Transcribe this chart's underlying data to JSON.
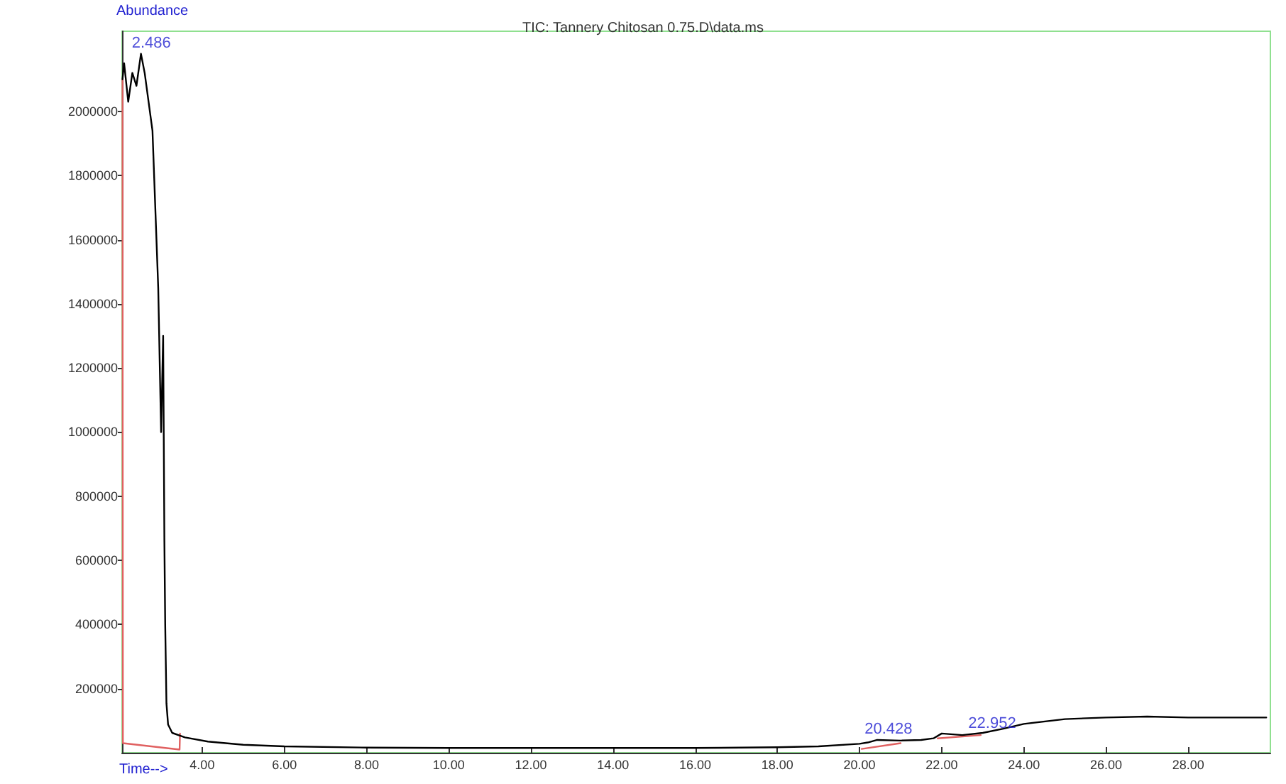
{
  "chart_data": {
    "type": "line",
    "title": "TIC: Tannery Chitosan 0.75.D\\data.ms",
    "xlabel": "Time-->",
    "ylabel": "Abundance",
    "xlim": [
      2.05,
      30
    ],
    "xticks": [
      {
        "value": 4,
        "label": "4.00"
      },
      {
        "value": 6,
        "label": "6.00"
      },
      {
        "value": 8,
        "label": "8.00"
      },
      {
        "value": 10,
        "label": "10.00"
      },
      {
        "value": 12,
        "label": "12.00"
      },
      {
        "value": 14,
        "label": "14.00"
      },
      {
        "value": 16,
        "label": "16.00"
      },
      {
        "value": 18,
        "label": "18.00"
      },
      {
        "value": 20,
        "label": "20.00"
      },
      {
        "value": 22,
        "label": "22.00"
      },
      {
        "value": 24,
        "label": "24.00"
      },
      {
        "value": 26,
        "label": "26.00"
      },
      {
        "value": 28,
        "label": "28.00"
      }
    ],
    "ylim": [
      0,
      2250000
    ],
    "yticks": [
      200000,
      400000,
      600000,
      800000,
      1000000,
      1200000,
      1400000,
      1600000,
      1800000,
      2000000
    ],
    "grid": false,
    "marker": "none",
    "line_style": "solid",
    "annotations": [
      {
        "text": "2.486",
        "x": 2.486,
        "y": 2180000
      },
      {
        "text": "20.428",
        "x": 20.428,
        "y": 40000
      },
      {
        "text": "22.952",
        "x": 22.952,
        "y": 57000
      }
    ],
    "series": [
      {
        "color": "#000000",
        "x": [
          2.06,
          2.1,
          2.2,
          2.3,
          2.4,
          2.51,
          2.6,
          2.79,
          2.93,
          3.0,
          3.05,
          3.08,
          3.1,
          3.13,
          3.17,
          3.27,
          3.58,
          4.14,
          5.0,
          6.0,
          8.0,
          10.0,
          12.0,
          14.0,
          16.0,
          18.0,
          19.0,
          20.0,
          20.2,
          20.43,
          21.0,
          21.5,
          21.8,
          22.0,
          22.5,
          23.0,
          23.5,
          24.0,
          25.0,
          26.0,
          27.0,
          28.0,
          29.0,
          29.9
        ],
        "values": [
          2100000,
          2150000,
          2030000,
          2120000,
          2080000,
          2180000,
          2120000,
          1940000,
          1450000,
          1000000,
          1300000,
          660000,
          400000,
          154000,
          88000,
          62000,
          48000,
          35000,
          25000,
          20000,
          16000,
          15000,
          15000,
          15000,
          15000,
          17000,
          20000,
          28000,
          32000,
          40000,
          38000,
          40000,
          45000,
          60000,
          55000,
          62000,
          75000,
          90000,
          105000,
          110000,
          113000,
          110000,
          110000,
          110000
        ]
      },
      {
        "color": "#e06060",
        "x": [
          2.06,
          2.07,
          3.45,
          3.46,
          3.47,
          20.05,
          21.0,
          21.01,
          21.9,
          22.95
        ],
        "values": [
          2100000,
          30000,
          10000,
          60000,
          null,
          12000,
          30000,
          null,
          45000,
          55000
        ]
      }
    ]
  }
}
